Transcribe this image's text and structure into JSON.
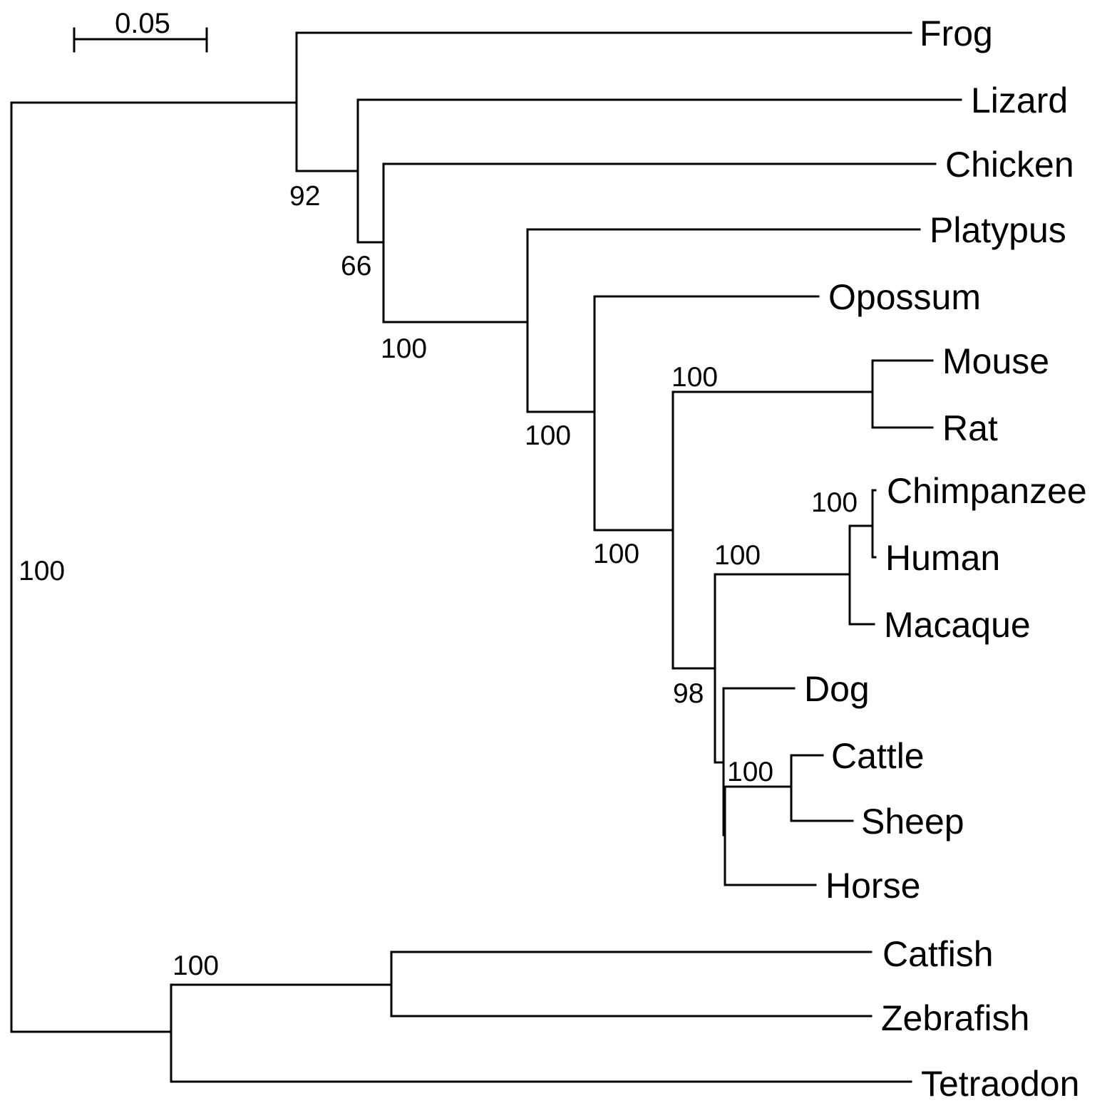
{
  "scale_bar": {
    "label": "0.05"
  },
  "taxa": {
    "frog": "Frog",
    "lizard": "Lizard",
    "chicken": "Chicken",
    "platypus": "Platypus",
    "opossum": "Opossum",
    "mouse": "Mouse",
    "rat": "Rat",
    "chimpanzee": "Chimpanzee",
    "human": "Human",
    "macaque": "Macaque",
    "dog": "Dog",
    "cattle": "Cattle",
    "sheep": "Sheep",
    "horse": "Horse",
    "catfish": "Catfish",
    "zebrafish": "Zebrafish",
    "tetraodon": "Tetraodon"
  },
  "support": {
    "root": "100",
    "tetrapods": "92",
    "amniotes": "66",
    "birds_mammals": "100",
    "mammals": "100",
    "therians": "100",
    "placentals": "98",
    "rodents": "100",
    "primates": "100",
    "apes": "100",
    "ruminants": "100",
    "fishes": "100"
  }
}
